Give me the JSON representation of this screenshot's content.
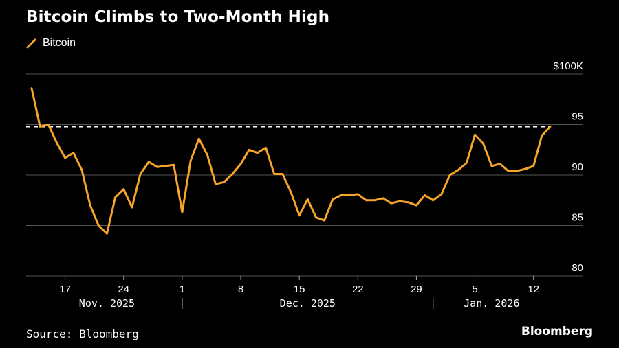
{
  "title": "Bitcoin Climbs to Two-Month High",
  "source": "Source: Bloomberg",
  "brand": "Bloomberg",
  "colors": {
    "background": "#000000",
    "series": "#f7a528",
    "grid": "#555555",
    "reference": "#ffffff"
  },
  "chart_data": {
    "type": "line",
    "title": "Bitcoin Climbs to Two-Month High",
    "series": [
      {
        "name": "Bitcoin",
        "x": [
          "2025-11-13",
          "2025-11-14",
          "2025-11-15",
          "2025-11-16",
          "2025-11-17",
          "2025-11-18",
          "2025-11-19",
          "2025-11-20",
          "2025-11-21",
          "2025-11-22",
          "2025-11-23",
          "2025-11-24",
          "2025-11-25",
          "2025-11-26",
          "2025-11-27",
          "2025-11-28",
          "2025-11-29",
          "2025-11-30",
          "2025-12-01",
          "2025-12-02",
          "2025-12-03",
          "2025-12-04",
          "2025-12-05",
          "2025-12-06",
          "2025-12-07",
          "2025-12-08",
          "2025-12-09",
          "2025-12-10",
          "2025-12-11",
          "2025-12-12",
          "2025-12-13",
          "2025-12-14",
          "2025-12-15",
          "2025-12-16",
          "2025-12-17",
          "2025-12-18",
          "2025-12-19",
          "2025-12-20",
          "2025-12-21",
          "2025-12-22",
          "2025-12-23",
          "2025-12-24",
          "2025-12-25",
          "2025-12-26",
          "2025-12-27",
          "2025-12-28",
          "2025-12-29",
          "2025-12-30",
          "2025-12-31",
          "2026-01-01",
          "2026-01-02",
          "2026-01-03",
          "2026-01-04",
          "2026-01-05",
          "2026-01-06",
          "2026-01-07",
          "2026-01-08",
          "2026-01-09",
          "2026-01-10",
          "2026-01-11",
          "2026-01-12",
          "2026-01-13",
          "2026-01-14"
        ],
        "values": [
          98.6,
          94.8,
          95.0,
          93.2,
          91.7,
          92.2,
          90.5,
          87.0,
          85.0,
          84.2,
          87.8,
          88.6,
          86.8,
          90.1,
          91.3,
          90.8,
          90.9,
          91.0,
          86.3,
          91.4,
          93.6,
          92.0,
          89.1,
          89.3,
          90.1,
          91.1,
          92.5,
          92.2,
          92.7,
          90.1,
          90.1,
          88.3,
          86.0,
          87.6,
          85.8,
          85.5,
          87.6,
          88.0,
          88.0,
          88.1,
          87.5,
          87.5,
          87.7,
          87.2,
          87.4,
          87.3,
          87.0,
          88.0,
          87.5,
          88.1,
          90.0,
          90.5,
          91.2,
          94.0,
          93.1,
          90.9,
          91.1,
          90.4,
          90.4,
          90.6,
          90.9,
          93.9,
          94.8
        ]
      }
    ],
    "reference_line": {
      "value": 94.8,
      "style": "dashed"
    },
    "ylim": [
      80,
      100
    ],
    "y_ticks": [
      {
        "value": 100,
        "label": "$100K"
      },
      {
        "value": 95,
        "label": "95"
      },
      {
        "value": 90,
        "label": "90"
      },
      {
        "value": 85,
        "label": "85"
      },
      {
        "value": 80,
        "label": "80"
      }
    ],
    "x_ticks": [
      {
        "date": "2025-11-17",
        "label": "17"
      },
      {
        "date": "2025-11-24",
        "label": "24"
      },
      {
        "date": "2025-12-01",
        "label": "1"
      },
      {
        "date": "2025-12-08",
        "label": "8"
      },
      {
        "date": "2025-12-15",
        "label": "15"
      },
      {
        "date": "2025-12-22",
        "label": "22"
      },
      {
        "date": "2025-12-29",
        "label": "29"
      },
      {
        "date": "2026-01-05",
        "label": "5"
      },
      {
        "date": "2026-01-12",
        "label": "12"
      }
    ],
    "x_groups": [
      {
        "label": "Nov. 2025",
        "center": "2025-11-22"
      },
      {
        "label": "Dec. 2025",
        "center": "2025-12-16"
      },
      {
        "label": "Jan. 2026",
        "center": "2026-01-07"
      }
    ],
    "x_group_separators": [
      "2025-12-01",
      "2025-12-31"
    ],
    "grid": true,
    "legend": "top-left"
  }
}
